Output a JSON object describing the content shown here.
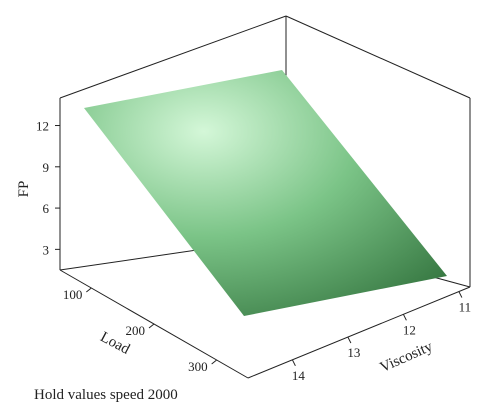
{
  "chart_data": {
    "type": "surface",
    "title": "",
    "zlabel": "FP",
    "xlabel": "Load",
    "ylabel": "Viscosity",
    "x_ticks": [
      100,
      200,
      300
    ],
    "y_ticks": [
      11,
      12,
      13,
      14
    ],
    "z_ticks": [
      3,
      6,
      9,
      12
    ],
    "x_range": [
      50,
      350
    ],
    "y_range": [
      10.8,
      14.8
    ],
    "z_range": [
      1.5,
      14.0
    ],
    "surface": {
      "x": [
        50,
        350
      ],
      "y": [
        10.8,
        14.8
      ],
      "z": [
        [
          13.0,
          1.8
        ],
        [
          13.0,
          1.8
        ]
      ]
    },
    "surface_colors": {
      "light": "#d4f7d8",
      "mid": "#7bc487",
      "dark": "#2f6f3a"
    },
    "footnote": "Hold values speed 2000"
  }
}
